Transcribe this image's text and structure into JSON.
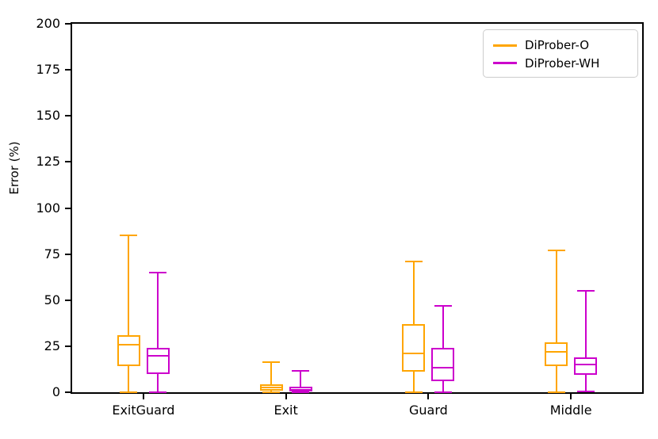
{
  "chart_data": {
    "type": "boxplot",
    "title": "",
    "xlabel": "",
    "ylabel": "Error (%)",
    "ylim": [
      0,
      200
    ],
    "yticks": [
      0,
      25,
      50,
      75,
      100,
      125,
      150,
      175,
      200
    ],
    "categories": [
      "ExitGuard",
      "Exit",
      "Guard",
      "Middle"
    ],
    "grid": false,
    "legend_position": "upper right",
    "series": [
      {
        "name": "DiProber-O",
        "color": "#FFA500",
        "boxes": [
          {
            "category": "ExitGuard",
            "whisker_low": 0,
            "q1": 14,
            "median": 26,
            "q3": 31,
            "whisker_high": 85
          },
          {
            "category": "Exit",
            "whisker_low": 0,
            "q1": 1,
            "median": 2.5,
            "q3": 4.5,
            "whisker_high": 16.5
          },
          {
            "category": "Guard",
            "whisker_low": 0,
            "q1": 11,
            "median": 21,
            "q3": 37,
            "whisker_high": 71
          },
          {
            "category": "Middle",
            "whisker_low": 0,
            "q1": 14,
            "median": 22,
            "q3": 27,
            "whisker_high": 77
          }
        ]
      },
      {
        "name": "DiProber-WH",
        "color": "#CC00CC",
        "boxes": [
          {
            "category": "ExitGuard",
            "whisker_low": 0,
            "q1": 10,
            "median": 20,
            "q3": 24,
            "whisker_high": 65
          },
          {
            "category": "Exit",
            "whisker_low": 0,
            "q1": 0.5,
            "median": 1.5,
            "q3": 3,
            "whisker_high": 11.5
          },
          {
            "category": "Guard",
            "whisker_low": 0,
            "q1": 6,
            "median": 13.5,
            "q3": 24,
            "whisker_high": 47
          },
          {
            "category": "Middle",
            "whisker_low": 0.5,
            "q1": 9.5,
            "median": 15,
            "q3": 19,
            "whisker_high": 55
          }
        ]
      }
    ]
  }
}
